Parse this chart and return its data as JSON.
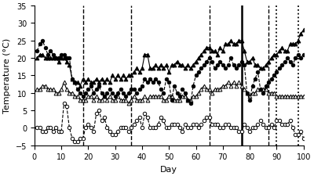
{
  "xlim": [
    0,
    100
  ],
  "ylim": [
    -5,
    35
  ],
  "xlabel": "Day",
  "ylabel": "Temperature (°C)",
  "yticks": [
    -5,
    0,
    5,
    10,
    15,
    20,
    25,
    30,
    35
  ],
  "xticks": [
    0,
    10,
    20,
    30,
    40,
    50,
    60,
    70,
    80,
    90,
    100
  ],
  "vlines_dashed": [
    18,
    36,
    65,
    87
  ],
  "vlines_solid": [
    77
  ],
  "vlines_dotted": [
    90,
    98
  ],
  "filled_circles": {
    "x": [
      1,
      2,
      3,
      4,
      5,
      6,
      7,
      8,
      9,
      10,
      11,
      12,
      13,
      14,
      15,
      16,
      17,
      18,
      19,
      20,
      21,
      22,
      23,
      24,
      25,
      26,
      27,
      28,
      29,
      30,
      31,
      32,
      33,
      34,
      35,
      36,
      37,
      38,
      39,
      40,
      41,
      42,
      43,
      44,
      45,
      46,
      47,
      48,
      49,
      50,
      51,
      52,
      53,
      54,
      55,
      56,
      57,
      58,
      59,
      60,
      61,
      62,
      63,
      64,
      65,
      66,
      67,
      68,
      69,
      70,
      71,
      72,
      73,
      74,
      75,
      76,
      77,
      78,
      79,
      80,
      81,
      82,
      83,
      84,
      85,
      86,
      87,
      88,
      89,
      90,
      91,
      92,
      93,
      94,
      95,
      96,
      97,
      98,
      99,
      100
    ],
    "y": [
      22,
      24,
      25,
      23,
      21,
      22,
      21,
      20,
      20,
      21,
      21,
      20,
      20,
      14,
      13,
      11,
      10,
      9,
      10,
      11,
      12,
      10,
      11,
      12,
      10,
      9,
      10,
      11,
      10,
      9,
      10,
      11,
      10,
      9,
      10,
      11,
      11,
      10,
      11,
      12,
      14,
      13,
      14,
      13,
      14,
      13,
      11,
      10,
      14,
      13,
      8,
      12,
      10,
      9,
      11,
      10,
      8,
      7,
      12,
      15,
      16,
      17,
      18,
      19,
      20,
      19,
      17,
      18,
      19,
      18,
      17,
      18,
      20,
      18,
      17,
      18,
      19,
      18,
      10,
      8,
      12,
      14,
      16,
      11,
      10,
      12,
      13,
      14,
      15,
      16,
      17,
      18,
      19,
      20,
      19,
      18,
      20,
      21,
      20,
      21
    ]
  },
  "filled_triangles": {
    "x": [
      1,
      2,
      3,
      4,
      5,
      6,
      7,
      8,
      9,
      10,
      11,
      12,
      13,
      14,
      15,
      16,
      17,
      18,
      19,
      20,
      21,
      22,
      23,
      24,
      25,
      26,
      27,
      28,
      29,
      30,
      31,
      32,
      33,
      34,
      35,
      36,
      37,
      38,
      39,
      40,
      41,
      42,
      43,
      44,
      45,
      46,
      47,
      48,
      49,
      50,
      51,
      52,
      53,
      54,
      55,
      56,
      57,
      58,
      59,
      60,
      61,
      62,
      63,
      64,
      65,
      66,
      67,
      68,
      69,
      70,
      71,
      72,
      73,
      74,
      75,
      76,
      77,
      78,
      79,
      80,
      81,
      82,
      83,
      84,
      85,
      86,
      87,
      88,
      89,
      90,
      91,
      92,
      93,
      94,
      95,
      96,
      97,
      98,
      99,
      100
    ],
    "y": [
      20,
      21,
      21,
      20,
      20,
      20,
      20,
      20,
      19,
      20,
      20,
      19,
      18,
      14,
      13,
      13,
      12,
      14,
      13,
      14,
      13,
      13,
      14,
      13,
      14,
      13,
      14,
      13,
      15,
      14,
      15,
      14,
      15,
      14,
      15,
      15,
      16,
      17,
      16,
      17,
      21,
      21,
      17,
      17,
      18,
      17,
      18,
      17,
      18,
      16,
      18,
      18,
      19,
      18,
      18,
      17,
      18,
      17,
      18,
      19,
      20,
      21,
      22,
      23,
      23,
      22,
      22,
      21,
      23,
      22,
      24,
      24,
      25,
      24,
      24,
      25,
      25,
      22,
      19,
      19,
      20,
      18,
      18,
      17,
      17,
      18,
      19,
      20,
      21,
      21,
      22,
      23,
      22,
      22,
      24,
      24,
      24,
      25,
      27,
      28
    ]
  },
  "open_triangles": {
    "x": [
      1,
      2,
      3,
      4,
      5,
      6,
      7,
      8,
      9,
      10,
      11,
      12,
      13,
      14,
      15,
      16,
      17,
      18,
      19,
      20,
      21,
      22,
      23,
      24,
      25,
      26,
      27,
      28,
      29,
      30,
      31,
      32,
      33,
      34,
      35,
      36,
      37,
      38,
      39,
      40,
      41,
      42,
      43,
      44,
      45,
      46,
      47,
      48,
      49,
      50,
      51,
      52,
      53,
      54,
      55,
      56,
      57,
      58,
      59,
      60,
      61,
      62,
      63,
      64,
      65,
      66,
      67,
      68,
      69,
      70,
      71,
      72,
      73,
      74,
      75,
      76,
      77,
      78,
      79,
      80,
      81,
      82,
      83,
      84,
      85,
      86,
      87,
      88,
      89,
      90,
      91,
      92,
      93,
      94,
      95,
      96,
      97,
      98,
      99,
      100
    ],
    "y": [
      11,
      11,
      12,
      12,
      11,
      11,
      11,
      10,
      10,
      11,
      13,
      11,
      10,
      10,
      9,
      9,
      8,
      8,
      8,
      9,
      9,
      8,
      9,
      8,
      8,
      9,
      8,
      9,
      8,
      8,
      9,
      8,
      8,
      8,
      7,
      8,
      9,
      8,
      8,
      8,
      9,
      8,
      9,
      9,
      9,
      9,
      9,
      8,
      8,
      9,
      9,
      8,
      8,
      8,
      9,
      9,
      8,
      8,
      9,
      9,
      10,
      11,
      12,
      11,
      11,
      10,
      11,
      11,
      11,
      12,
      12,
      13,
      12,
      13,
      12,
      13,
      12,
      11,
      10,
      9,
      10,
      10,
      11,
      11,
      11,
      11,
      10,
      10,
      10,
      9,
      9,
      9,
      9,
      9,
      9,
      9,
      9,
      9,
      9,
      9
    ]
  },
  "open_circles": {
    "x": [
      1,
      2,
      3,
      4,
      5,
      6,
      7,
      8,
      9,
      10,
      11,
      12,
      13,
      14,
      15,
      16,
      17,
      18,
      19,
      20,
      21,
      22,
      23,
      24,
      25,
      26,
      27,
      28,
      29,
      30,
      31,
      32,
      33,
      34,
      35,
      36,
      37,
      38,
      39,
      40,
      41,
      42,
      43,
      44,
      45,
      46,
      47,
      48,
      49,
      50,
      51,
      52,
      53,
      54,
      55,
      56,
      57,
      58,
      59,
      60,
      61,
      62,
      63,
      64,
      65,
      66,
      67,
      68,
      69,
      70,
      71,
      72,
      73,
      74,
      75,
      76,
      77,
      78,
      79,
      80,
      81,
      82,
      83,
      84,
      85,
      86,
      87,
      88,
      89,
      90,
      91,
      92,
      93,
      94,
      95,
      96,
      97,
      98,
      99,
      100
    ],
    "y": [
      0,
      0,
      -1,
      -1,
      0,
      0,
      -1,
      0,
      -1,
      -1,
      7,
      6,
      0,
      -3,
      -4,
      -4,
      -3,
      -3,
      0,
      1,
      0,
      -1,
      4,
      5,
      2,
      3,
      0,
      -1,
      -2,
      -2,
      -1,
      0,
      0,
      0,
      -1,
      0,
      1,
      2,
      3,
      0,
      4,
      3,
      0,
      0,
      0,
      1,
      3,
      2,
      0,
      0,
      1,
      1,
      1,
      0,
      -1,
      1,
      0,
      0,
      1,
      1,
      0,
      1,
      2,
      3,
      3,
      1,
      1,
      1,
      0,
      0,
      1,
      1,
      0,
      0,
      0,
      -1,
      -1,
      1,
      0,
      -1,
      0,
      0,
      1,
      2,
      1,
      0,
      0,
      1,
      0,
      2,
      2,
      1,
      1,
      1,
      2,
      0,
      -2,
      -2,
      -1,
      -3
    ]
  }
}
